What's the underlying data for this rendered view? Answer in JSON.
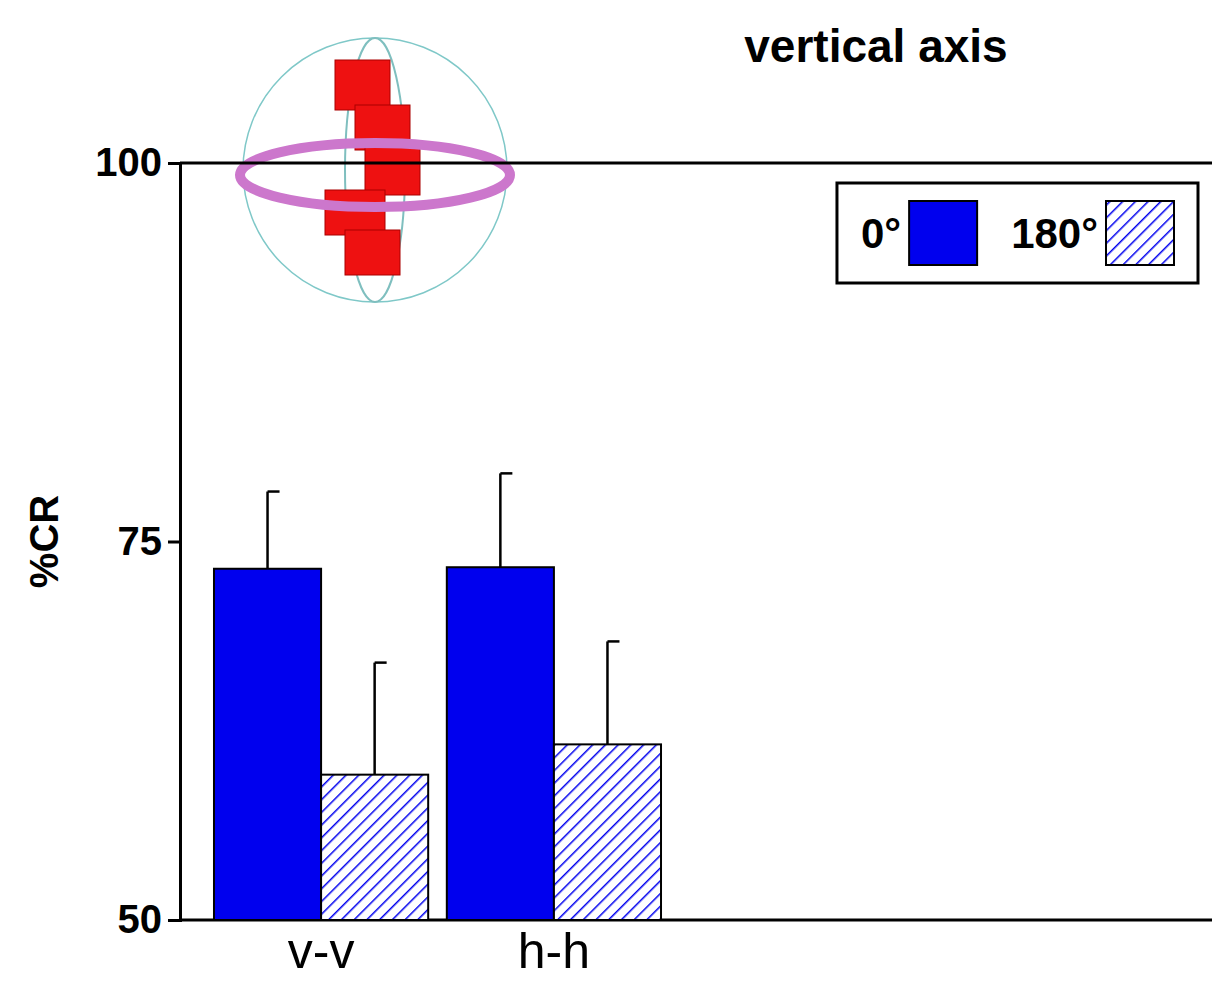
{
  "chart_data": {
    "type": "bar",
    "title": "vertical axis",
    "y_label": "%CR",
    "categories": [
      "v-v",
      "h-h"
    ],
    "series": [
      {
        "name": "0°",
        "color": "#0000ee",
        "values": [
          73.2,
          73.3
        ],
        "errors": [
          5.1,
          6.2
        ]
      },
      {
        "name": "180°",
        "color": "#0000ee",
        "values": [
          59.6,
          61.6
        ],
        "errors": [
          7.4,
          6.8
        ]
      }
    ],
    "ylim": [
      50,
      100
    ],
    "yticks": [
      50,
      75,
      100
    ],
    "legend": "upper right"
  }
}
